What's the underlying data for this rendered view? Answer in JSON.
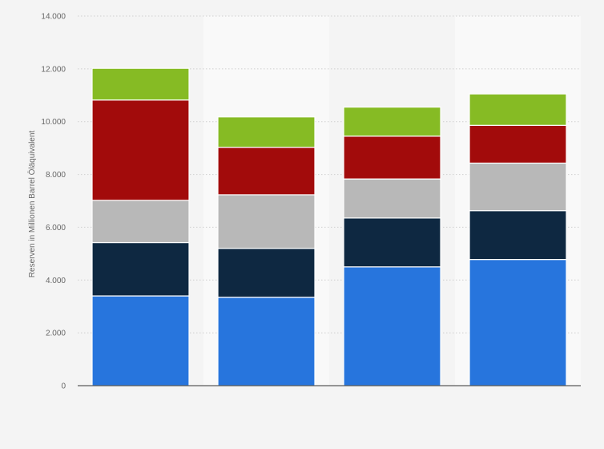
{
  "chart_data": {
    "type": "bar",
    "stacked": true,
    "title": "",
    "xlabel": "",
    "ylabel": "Reserven in Millionen Barrel Öläquivalent",
    "ylim": [
      0,
      14000
    ],
    "yticks": [
      0,
      2000,
      4000,
      6000,
      8000,
      10000,
      12000,
      14000
    ],
    "ytick_labels": [
      "0",
      "2.000",
      "4.000",
      "6.000",
      "8.000",
      "10.000",
      "12.000",
      "14.000"
    ],
    "categories": [
      "",
      "",
      "",
      ""
    ],
    "grid": true,
    "legend": "none",
    "series": [
      {
        "color": "#2775dd",
        "values": [
          3400,
          3350,
          4500,
          4780
        ]
      },
      {
        "color": "#0e2841",
        "values": [
          2020,
          1850,
          1850,
          1850
        ]
      },
      {
        "color": "#b8b8b8",
        "values": [
          1600,
          2030,
          1480,
          1800
        ]
      },
      {
        "color": "#a20b0b",
        "values": [
          3800,
          1800,
          1620,
          1430
        ]
      },
      {
        "color": "#86bb24",
        "values": [
          1200,
          1150,
          1100,
          1190
        ]
      }
    ]
  }
}
